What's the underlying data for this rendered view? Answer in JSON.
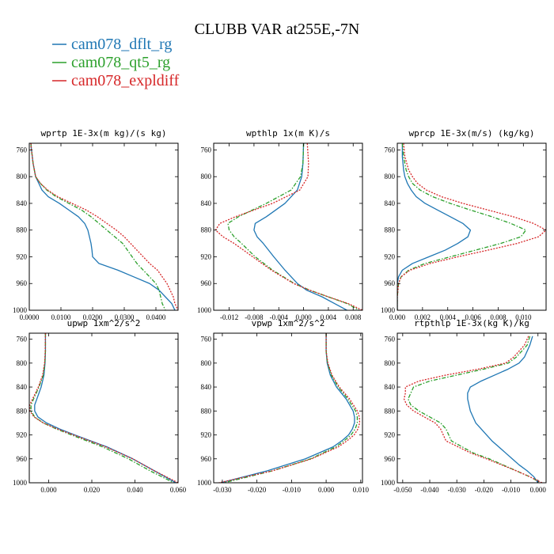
{
  "figure": {
    "title": "CLUBB VAR at255E,-7N",
    "legend": [
      {
        "label": "cam078_dflt_rg",
        "color": "#1f77b4",
        "dash": "solid"
      },
      {
        "label": "cam078_qt5_rg",
        "color": "#2ca02c",
        "dash": "dashdot"
      },
      {
        "label": "cam078_expldiff",
        "color": "#d62728",
        "dash": "dotted"
      }
    ]
  },
  "chart_data": [
    {
      "type": "line",
      "title": "wprtp  1E-3x(m kg)/(s kg)",
      "xlim": [
        0,
        0.047
      ],
      "ylim": [
        1000,
        750
      ],
      "xticks": [
        0,
        0.01,
        0.02,
        0.03,
        0.04
      ],
      "xtick_labels": [
        "0.0000",
        "0.0100",
        "0.0200",
        "0.0300",
        "0.0400"
      ],
      "yticks": [
        760,
        800,
        840,
        880,
        920,
        960,
        1000
      ],
      "ytick_labels": [
        "760",
        "800",
        "840",
        "880",
        "920",
        "960",
        "1000"
      ],
      "series": [
        {
          "y": [
            750,
            760,
            780,
            800,
            810,
            820,
            830,
            840,
            850,
            860,
            870,
            880,
            890,
            900,
            910,
            920,
            930,
            940,
            950,
            960,
            970,
            980,
            990,
            1000
          ],
          "x": [
            0.0005,
            0.0007,
            0.0012,
            0.002,
            0.003,
            0.004,
            0.006,
            0.0095,
            0.0125,
            0.0155,
            0.0175,
            0.0185,
            0.019,
            0.0195,
            0.0198,
            0.02,
            0.022,
            0.028,
            0.033,
            0.038,
            0.041,
            0.043,
            0.045,
            0.046
          ]
        },
        {
          "y": [
            750,
            760,
            780,
            800,
            810,
            820,
            830,
            840,
            850,
            860,
            870,
            880,
            890,
            900,
            910,
            920,
            930,
            940,
            950,
            960,
            970,
            980,
            990,
            1000
          ],
          "x": [
            0.0005,
            0.0007,
            0.0012,
            0.002,
            0.0035,
            0.0055,
            0.0085,
            0.0125,
            0.0165,
            0.0195,
            0.022,
            0.0245,
            0.027,
            0.0295,
            0.031,
            0.0325,
            0.034,
            0.036,
            0.038,
            0.04,
            0.041,
            0.0415,
            0.042,
            0.043
          ]
        },
        {
          "y": [
            750,
            760,
            780,
            800,
            810,
            820,
            830,
            840,
            850,
            860,
            870,
            880,
            890,
            900,
            910,
            920,
            930,
            940,
            950,
            960,
            970,
            980,
            990,
            1000
          ],
          "x": [
            0.0005,
            0.0007,
            0.0012,
            0.002,
            0.0035,
            0.0058,
            0.009,
            0.0135,
            0.018,
            0.0215,
            0.0245,
            0.0275,
            0.03,
            0.032,
            0.034,
            0.036,
            0.038,
            0.0405,
            0.042,
            0.0435,
            0.0445,
            0.0455,
            0.046,
            0.047
          ]
        }
      ]
    },
    {
      "type": "line",
      "title": "wpthlp  1x(m K)/s",
      "xlim": [
        -0.0145,
        0.0095
      ],
      "ylim": [
        1000,
        750
      ],
      "xticks": [
        -0.012,
        -0.008,
        -0.004,
        0,
        0.004,
        0.008
      ],
      "xtick_labels": [
        "-0.012",
        "-0.008",
        "-0.004",
        "0.000",
        "0.004",
        "0.008"
      ],
      "yticks": [
        760,
        800,
        840,
        880,
        920,
        960,
        1000
      ],
      "ytick_labels": [
        "760",
        "800",
        "840",
        "880",
        "920",
        "960",
        "1000"
      ],
      "series": [
        {
          "y": [
            750,
            780,
            800,
            820,
            840,
            860,
            870,
            880,
            890,
            900,
            920,
            940,
            960,
            970,
            980,
            990,
            1000
          ],
          "x": [
            0.0,
            -0.0001,
            -0.0003,
            -0.001,
            -0.003,
            -0.006,
            -0.0078,
            -0.008,
            -0.0075,
            -0.0065,
            -0.0048,
            -0.003,
            -0.001,
            0.0005,
            0.003,
            0.005,
            0.007
          ]
        },
        {
          "y": [
            750,
            780,
            800,
            820,
            840,
            860,
            870,
            880,
            890,
            900,
            920,
            940,
            960,
            970,
            980,
            990,
            1000
          ],
          "x": [
            0.0,
            -0.0001,
            -0.0005,
            -0.002,
            -0.006,
            -0.0105,
            -0.0122,
            -0.012,
            -0.0112,
            -0.01,
            -0.0078,
            -0.005,
            -0.0015,
            0.001,
            0.004,
            0.007,
            0.009
          ]
        },
        {
          "y": [
            750,
            780,
            800,
            820,
            840,
            860,
            870,
            880,
            890,
            900,
            920,
            940,
            960,
            970,
            980,
            990,
            1000
          ],
          "x": [
            0.0006,
            0.0008,
            0.0007,
            -0.0006,
            -0.005,
            -0.011,
            -0.0135,
            -0.0142,
            -0.013,
            -0.0112,
            -0.0082,
            -0.0052,
            -0.0016,
            0.001,
            0.004,
            0.0072,
            0.0095
          ]
        }
      ]
    },
    {
      "type": "line",
      "title": "wprcp  1E-3x(m/s) (kg/kg)",
      "xlim": [
        0,
        0.0118
      ],
      "ylim": [
        1000,
        750
      ],
      "xticks": [
        0,
        0.002,
        0.004,
        0.006,
        0.008,
        0.01
      ],
      "xtick_labels": [
        "0.000",
        "0.002",
        "0.004",
        "0.006",
        "0.008",
        "0.010"
      ],
      "yticks": [
        760,
        800,
        840,
        880,
        920,
        960,
        1000
      ],
      "ytick_labels": [
        "760",
        "800",
        "840",
        "880",
        "920",
        "960",
        "1000"
      ],
      "series": [
        {
          "y": [
            750,
            770,
            790,
            800,
            810,
            820,
            830,
            840,
            850,
            860,
            870,
            880,
            890,
            900,
            910,
            920,
            930,
            940,
            950,
            960,
            980,
            1000
          ],
          "x": [
            0.0004,
            0.0004,
            0.0005,
            0.0006,
            0.0008,
            0.0011,
            0.0015,
            0.0022,
            0.0032,
            0.0042,
            0.0052,
            0.0058,
            0.0056,
            0.0048,
            0.0038,
            0.0025,
            0.0012,
            0.0004,
            0.0001,
            0.0,
            0.0,
            0.0
          ]
        },
        {
          "y": [
            750,
            770,
            790,
            800,
            810,
            820,
            830,
            840,
            850,
            860,
            870,
            880,
            890,
            900,
            910,
            920,
            930,
            940,
            950,
            960,
            980,
            1000
          ],
          "x": [
            0.0004,
            0.0005,
            0.0007,
            0.0009,
            0.0012,
            0.0018,
            0.0028,
            0.0042,
            0.0058,
            0.0075,
            0.009,
            0.0102,
            0.0098,
            0.0082,
            0.0062,
            0.0042,
            0.0022,
            0.0009,
            0.0003,
            0.0001,
            0.0,
            0.0
          ]
        },
        {
          "y": [
            750,
            770,
            790,
            800,
            810,
            820,
            830,
            840,
            850,
            860,
            870,
            880,
            890,
            900,
            910,
            920,
            930,
            940,
            950,
            960,
            980,
            1000
          ],
          "x": [
            0.0005,
            0.0006,
            0.0009,
            0.0012,
            0.0016,
            0.0023,
            0.0035,
            0.0052,
            0.0072,
            0.0092,
            0.0108,
            0.0118,
            0.0112,
            0.0095,
            0.0072,
            0.0048,
            0.0026,
            0.001,
            0.0003,
            0.0001,
            0.0,
            0.0
          ]
        }
      ]
    },
    {
      "type": "line",
      "title": "upwp  1xm^2/s^2",
      "xlim": [
        -0.009,
        0.06
      ],
      "ylim": [
        1000,
        750
      ],
      "xticks": [
        0,
        0.02,
        0.04,
        0.06
      ],
      "xtick_labels": [
        "0.000",
        "0.020",
        "0.040",
        "0.060"
      ],
      "yticks": [
        760,
        800,
        840,
        880,
        920,
        960,
        1000
      ],
      "ytick_labels": [
        "760",
        "800",
        "840",
        "880",
        "920",
        "960",
        "1000"
      ],
      "series": [
        {
          "y": [
            750,
            780,
            800,
            820,
            840,
            860,
            870,
            880,
            890,
            900,
            910,
            920,
            940,
            960,
            980,
            1000
          ],
          "x": [
            -0.0015,
            -0.0015,
            -0.0017,
            -0.0022,
            -0.0035,
            -0.0055,
            -0.0065,
            -0.0065,
            -0.005,
            -0.001,
            0.005,
            0.012,
            0.027,
            0.039,
            0.049,
            0.059
          ]
        },
        {
          "y": [
            750,
            780,
            800,
            820,
            840,
            860,
            870,
            880,
            890,
            900,
            910,
            920,
            940,
            960,
            980,
            1000
          ],
          "x": [
            -0.0015,
            -0.0015,
            -0.0018,
            -0.0025,
            -0.0045,
            -0.007,
            -0.0082,
            -0.0082,
            -0.0065,
            -0.0025,
            0.0035,
            0.0105,
            0.025,
            0.037,
            0.047,
            0.058
          ]
        },
        {
          "y": [
            750,
            780,
            800,
            820,
            840,
            860,
            870,
            880,
            890,
            900,
            910,
            920,
            940,
            960,
            980,
            1000
          ],
          "x": [
            -0.0015,
            -0.0016,
            -0.0019,
            -0.0028,
            -0.0048,
            -0.0075,
            -0.0088,
            -0.0087,
            -0.0068,
            -0.0025,
            0.004,
            0.0115,
            0.0265,
            0.039,
            0.049,
            0.06
          ]
        }
      ]
    },
    {
      "type": "line",
      "title": "vpwp  1xm^2/s^2",
      "xlim": [
        -0.0325,
        0.0105
      ],
      "ylim": [
        1000,
        750
      ],
      "xticks": [
        -0.03,
        -0.02,
        -0.01,
        0,
        0.01
      ],
      "xtick_labels": [
        "-0.030",
        "-0.020",
        "-0.010",
        "0.000",
        "0.010"
      ],
      "yticks": [
        760,
        800,
        840,
        880,
        920,
        960,
        1000
      ],
      "ytick_labels": [
        "760",
        "800",
        "840",
        "880",
        "920",
        "960",
        "1000"
      ],
      "series": [
        {
          "y": [
            750,
            780,
            800,
            820,
            840,
            860,
            880,
            890,
            900,
            910,
            920,
            930,
            940,
            960,
            980,
            1000
          ],
          "x": [
            0.0,
            0.0,
            0.0003,
            0.0012,
            0.003,
            0.0058,
            0.0078,
            0.0082,
            0.0082,
            0.0076,
            0.0065,
            0.0045,
            0.002,
            -0.006,
            -0.017,
            -0.0305
          ]
        },
        {
          "y": [
            750,
            780,
            800,
            820,
            840,
            860,
            880,
            890,
            900,
            910,
            920,
            930,
            940,
            960,
            980,
            1000
          ],
          "x": [
            0.0,
            0.0,
            0.0004,
            0.0015,
            0.0035,
            0.0063,
            0.0085,
            0.009,
            0.009,
            0.0084,
            0.0072,
            0.0052,
            0.0028,
            -0.0045,
            -0.0155,
            -0.0295
          ]
        },
        {
          "y": [
            750,
            780,
            800,
            820,
            840,
            860,
            880,
            890,
            900,
            910,
            920,
            930,
            940,
            960,
            980,
            1000
          ],
          "x": [
            0.0,
            0.0,
            0.0005,
            0.0017,
            0.0038,
            0.0068,
            0.009,
            0.0096,
            0.0097,
            0.0092,
            0.0081,
            0.006,
            0.0035,
            -0.0042,
            -0.0155,
            -0.031
          ]
        }
      ]
    },
    {
      "type": "line",
      "title": "rtpthlp  1E-3x(kg K)/kg",
      "xlim": [
        -0.052,
        0.003
      ],
      "ylim": [
        1000,
        750
      ],
      "xticks": [
        -0.05,
        -0.04,
        -0.03,
        -0.02,
        -0.01,
        0
      ],
      "xtick_labels": [
        "-0.050",
        "-0.040",
        "-0.030",
        "-0.020",
        "-0.010",
        "0.000"
      ],
      "yticks": [
        760,
        800,
        840,
        880,
        920,
        960,
        1000
      ],
      "ytick_labels": [
        "760",
        "800",
        "840",
        "880",
        "920",
        "960",
        "1000"
      ],
      "series": [
        {
          "y": [
            755,
            770,
            790,
            800,
            810,
            820,
            830,
            840,
            850,
            860,
            870,
            880,
            890,
            900,
            910,
            920,
            930,
            940,
            950,
            960,
            970,
            980,
            990,
            1000
          ],
          "x": [
            -0.002,
            -0.003,
            -0.005,
            -0.007,
            -0.011,
            -0.016,
            -0.021,
            -0.025,
            -0.026,
            -0.026,
            -0.0255,
            -0.025,
            -0.024,
            -0.023,
            -0.021,
            -0.019,
            -0.017,
            -0.0145,
            -0.012,
            -0.0095,
            -0.007,
            -0.004,
            -0.0015,
            0.0
          ]
        },
        {
          "y": [
            755,
            770,
            790,
            800,
            810,
            820,
            830,
            840,
            850,
            860,
            870,
            880,
            890,
            900,
            910,
            920,
            930,
            940,
            950,
            960,
            970,
            980,
            990,
            1000
          ],
          "x": [
            -0.003,
            -0.004,
            -0.008,
            -0.011,
            -0.02,
            -0.03,
            -0.04,
            -0.046,
            -0.047,
            -0.048,
            -0.047,
            -0.044,
            -0.04,
            -0.036,
            -0.034,
            -0.033,
            -0.032,
            -0.028,
            -0.024,
            -0.018,
            -0.013,
            -0.008,
            -0.003,
            0.001
          ]
        },
        {
          "y": [
            755,
            770,
            790,
            800,
            810,
            820,
            830,
            840,
            850,
            860,
            870,
            880,
            890,
            900,
            910,
            920,
            930,
            940,
            950,
            960,
            970,
            980,
            990,
            1000
          ],
          "x": [
            -0.0035,
            -0.005,
            -0.009,
            -0.012,
            -0.022,
            -0.034,
            -0.044,
            -0.049,
            -0.049,
            -0.0495,
            -0.0485,
            -0.046,
            -0.042,
            -0.038,
            -0.036,
            -0.035,
            -0.034,
            -0.0295,
            -0.025,
            -0.019,
            -0.0135,
            -0.008,
            -0.003,
            0.0015
          ]
        }
      ]
    }
  ]
}
